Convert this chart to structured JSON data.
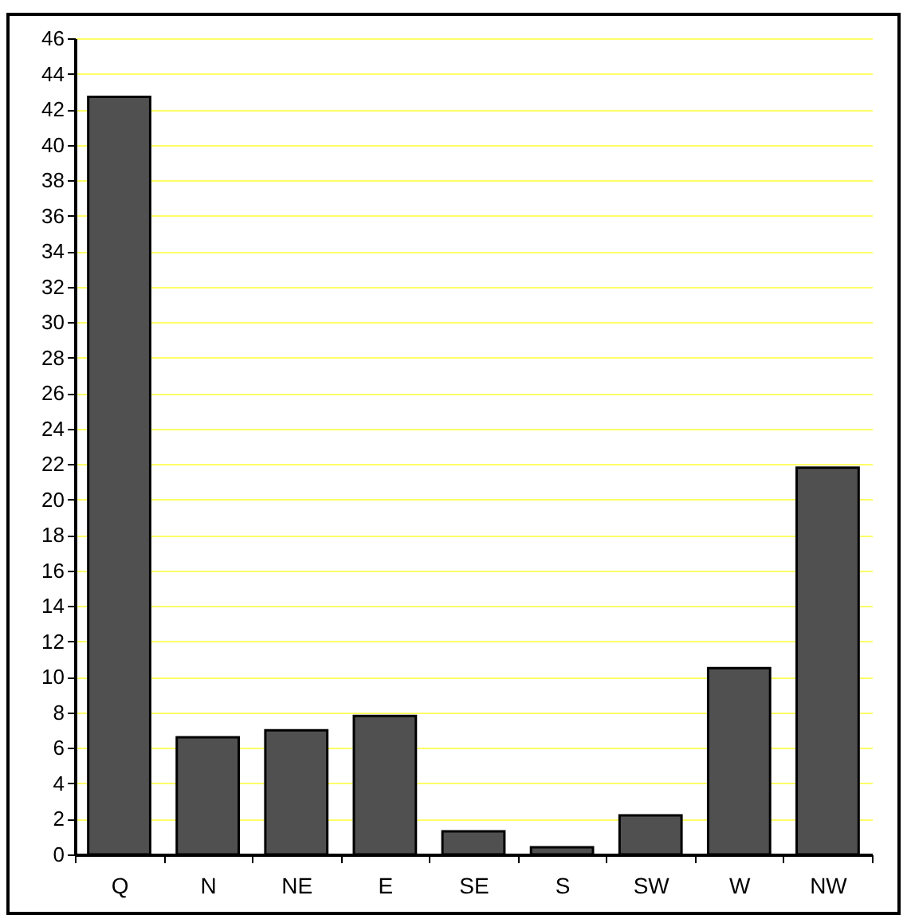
{
  "chart_data": {
    "type": "bar",
    "categories": [
      "Q",
      "N",
      "NE",
      "E",
      "SE",
      "S",
      "SW",
      "W",
      "NW"
    ],
    "values": [
      42.7,
      6.6,
      7.0,
      7.8,
      1.3,
      0.4,
      2.2,
      10.5,
      21.8
    ],
    "color": "#505050",
    "ylim": [
      0,
      46
    ],
    "yticks": [
      0,
      2,
      4,
      6,
      8,
      10,
      12,
      14,
      16,
      18,
      20,
      22,
      24,
      26,
      28,
      30,
      32,
      34,
      36,
      38,
      40,
      42,
      44,
      46
    ],
    "grid": "y"
  }
}
